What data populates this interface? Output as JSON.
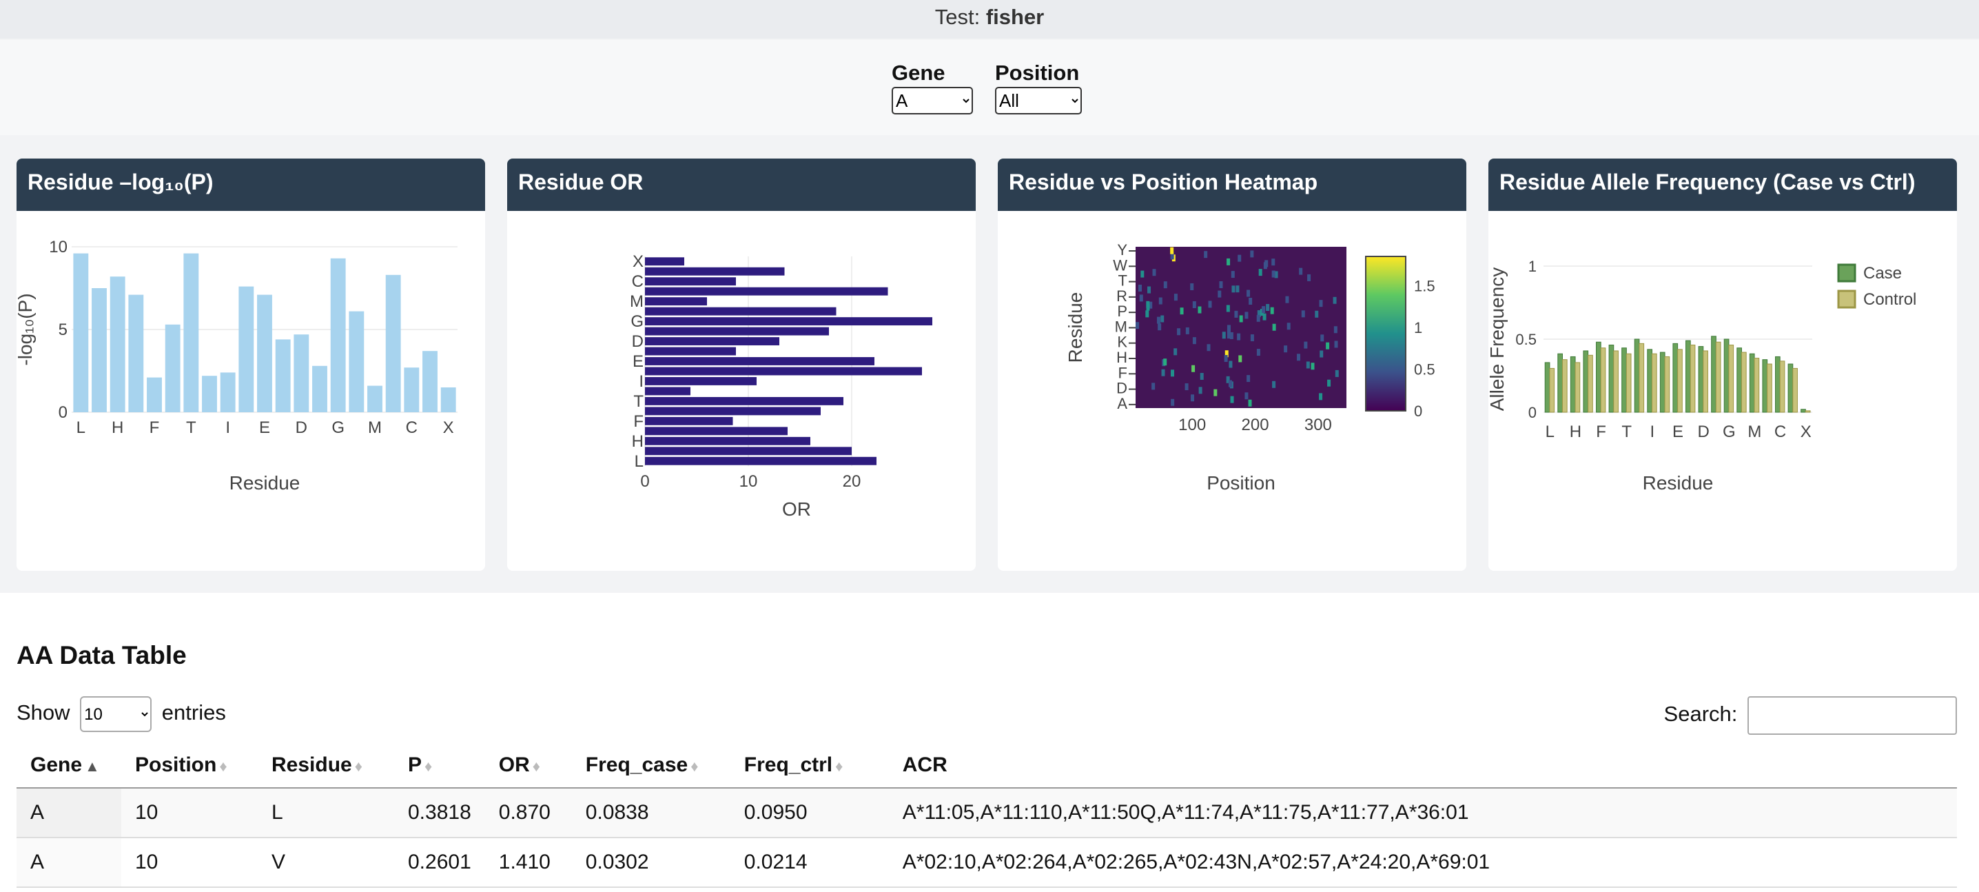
{
  "header": {
    "test_label": "Test:",
    "test_value": "fisher"
  },
  "controls": {
    "gene_label": "Gene",
    "gene_value": "A",
    "position_label": "Position",
    "position_value": "All"
  },
  "cards": {
    "residue_p_title": "Residue –log₁₀(P)",
    "residue_or_title": "Residue OR",
    "heatmap_title": "Residue vs Position Heatmap",
    "freq_title": "Residue Allele Frequency (Case vs Ctrl)"
  },
  "chart_data": [
    {
      "type": "bar",
      "xlabel": "Residue",
      "ylabel": "-log₁₀(P)",
      "ylim": [
        0,
        10
      ],
      "yticks": [
        "0",
        "5",
        "10"
      ],
      "xtick_labels": [
        "L",
        "H",
        "F",
        "T",
        "I",
        "E",
        "D",
        "G",
        "M",
        "C",
        "X"
      ],
      "values": [
        9.6,
        7.5,
        8.2,
        7.1,
        2.1,
        5.3,
        9.6,
        2.2,
        2.4,
        7.6,
        7.1,
        4.4,
        4.7,
        2.8,
        9.3,
        6.1,
        1.6,
        8.3,
        2.7,
        3.7,
        1.5
      ],
      "color": "#a7d3ee",
      "grid": true
    },
    {
      "type": "bar",
      "orientation": "horizontal",
      "xlabel": "OR",
      "xlim": [
        0,
        28
      ],
      "xticks": [
        "0",
        "10",
        "20"
      ],
      "ytick_labels": [
        "X",
        "C",
        "M",
        "G",
        "D",
        "E",
        "I",
        "T",
        "F",
        "H",
        "L"
      ],
      "values_top_to_bottom": [
        3.8,
        13.5,
        8.8,
        23.5,
        6.0,
        18.5,
        27.8,
        17.8,
        13.0,
        8.8,
        22.2,
        26.8,
        10.8,
        4.4,
        19.2,
        17.0,
        8.5,
        13.8,
        16.0,
        20.0,
        22.4
      ],
      "color": "#2e1c7f",
      "grid": true
    },
    {
      "type": "heatmap",
      "xlabel": "Position",
      "ylabel": "Residue",
      "xticks": [
        "100",
        "200",
        "300"
      ],
      "ytick_labels": [
        "Y",
        "W",
        "T",
        "R",
        "P",
        "M",
        "K",
        "H",
        "F",
        "D",
        "A"
      ],
      "colorscale": "viridis",
      "colorbar_ticks": [
        "0",
        "0.5",
        "1",
        "1.5"
      ],
      "zmin": 0,
      "zmax": 1.85
    },
    {
      "type": "bar",
      "xlabel": "Residue",
      "ylabel": "Allele Frequency",
      "ylim": [
        0,
        1
      ],
      "yticks": [
        "0",
        "0.5",
        "1"
      ],
      "xtick_labels": [
        "L",
        "H",
        "F",
        "T",
        "I",
        "E",
        "D",
        "G",
        "M",
        "C",
        "X"
      ],
      "legend_position": "top-right",
      "series": [
        {
          "name": "Case",
          "color": "#6aa25a",
          "values": [
            0.34,
            0.4,
            0.38,
            0.42,
            0.48,
            0.46,
            0.44,
            0.5,
            0.43,
            0.41,
            0.47,
            0.49,
            0.45,
            0.52,
            0.5,
            0.44,
            0.4,
            0.36,
            0.38,
            0.33,
            0.02
          ]
        },
        {
          "name": "Control",
          "color": "#c8c27a",
          "values": [
            0.3,
            0.36,
            0.34,
            0.39,
            0.44,
            0.42,
            0.4,
            0.47,
            0.4,
            0.38,
            0.43,
            0.46,
            0.42,
            0.48,
            0.46,
            0.41,
            0.37,
            0.33,
            0.35,
            0.3,
            0.01
          ]
        }
      ]
    }
  ],
  "table": {
    "title": "AA Data Table",
    "show_label": "Show",
    "entries_value": "10",
    "entries_label": "entries",
    "search_label": "Search:",
    "columns": [
      "Gene",
      "Position",
      "Residue",
      "P",
      "OR",
      "Freq_case",
      "Freq_ctrl",
      "ACR"
    ],
    "rows": [
      [
        "A",
        "10",
        "L",
        "0.3818",
        "0.870",
        "0.0838",
        "0.0950",
        "A*11:05,A*11:110,A*11:50Q,A*11:74,A*11:75,A*11:77,A*36:01"
      ],
      [
        "A",
        "10",
        "V",
        "0.2601",
        "1.410",
        "0.0302",
        "0.0214",
        "A*02:10,A*02:264,A*02:265,A*02:43N,A*02:57,A*24:20,A*69:01"
      ]
    ]
  }
}
